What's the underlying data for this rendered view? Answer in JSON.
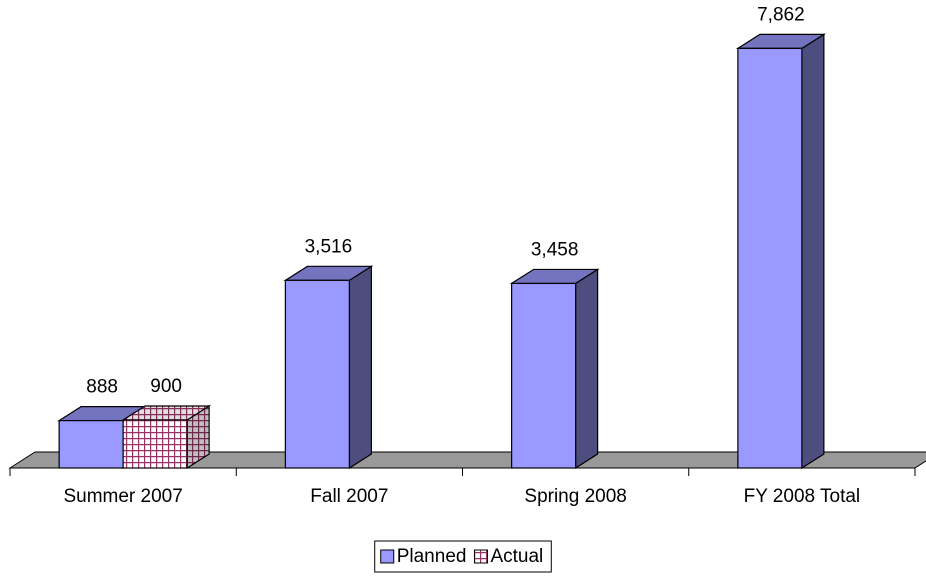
{
  "chart_data": {
    "type": "bar3d",
    "categories": [
      "Summer 2007",
      "Fall 2007",
      "Spring 2008",
      "FY 2008 Total"
    ],
    "series": [
      {
        "name": "Planned",
        "color": "#9999ff",
        "values": [
          888,
          3516,
          3458,
          7862
        ],
        "value_labels": [
          "888",
          "3,516",
          "3,458",
          "7,862"
        ]
      },
      {
        "name": "Actual",
        "color": "#993366",
        "values": [
          900,
          null,
          null,
          null
        ],
        "value_labels": [
          "900",
          null,
          null,
          null
        ]
      }
    ],
    "ylim": [
      0,
      8000
    ],
    "legend": "bottom"
  }
}
